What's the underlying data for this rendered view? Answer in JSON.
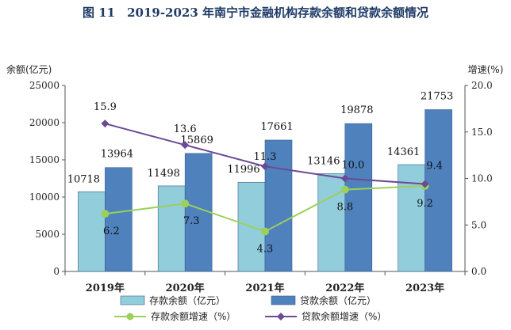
{
  "chart_data": {
    "type": "bar",
    "title": "图 11　2019-2023 年南宁市金融机构存款余额和贷款余额情况",
    "left_axis_label": "余额(亿元)",
    "right_axis_label": "增速(%)",
    "categories": [
      "2019年",
      "2020年",
      "2021年",
      "2022年",
      "2023年"
    ],
    "ylim": [
      0,
      25000
    ],
    "y_ticks": [
      "0",
      "5000",
      "10000",
      "15000",
      "20000",
      "25000"
    ],
    "y2lim": [
      0,
      20
    ],
    "y2_ticks": [
      "0.0",
      "5.0",
      "10.0",
      "15.0",
      "20.0"
    ],
    "grid": false,
    "legend_position": "bottom",
    "series": [
      {
        "name": "存款余额（亿元）",
        "kind": "bar",
        "axis": "left",
        "color": "#92cddc",
        "values": [
          10718,
          11498,
          11996,
          13146,
          14361
        ],
        "labels": [
          "10718",
          "11498",
          "11996",
          "13146",
          "14361"
        ]
      },
      {
        "name": "贷款余额（亿元）",
        "kind": "bar",
        "axis": "left",
        "color": "#4f81bd",
        "values": [
          13964,
          15869,
          17661,
          19878,
          21753
        ],
        "labels": [
          "13964",
          "15869",
          "17661",
          "19878",
          "21753"
        ]
      },
      {
        "name": "存款余额增速（%）",
        "kind": "line",
        "axis": "right",
        "color": "#9bd05a",
        "values": [
          6.2,
          7.3,
          4.3,
          8.8,
          9.2
        ],
        "labels": [
          "6.2",
          "7.3",
          "4.3",
          "8.8",
          "9.2"
        ]
      },
      {
        "name": "贷款余额增速（%）",
        "kind": "line",
        "axis": "right",
        "color": "#6b4a96",
        "values": [
          15.9,
          13.6,
          11.3,
          10.0,
          9.4
        ],
        "labels": [
          "15.9",
          "13.6",
          "11.3",
          "10.0",
          "9.4"
        ]
      }
    ]
  }
}
